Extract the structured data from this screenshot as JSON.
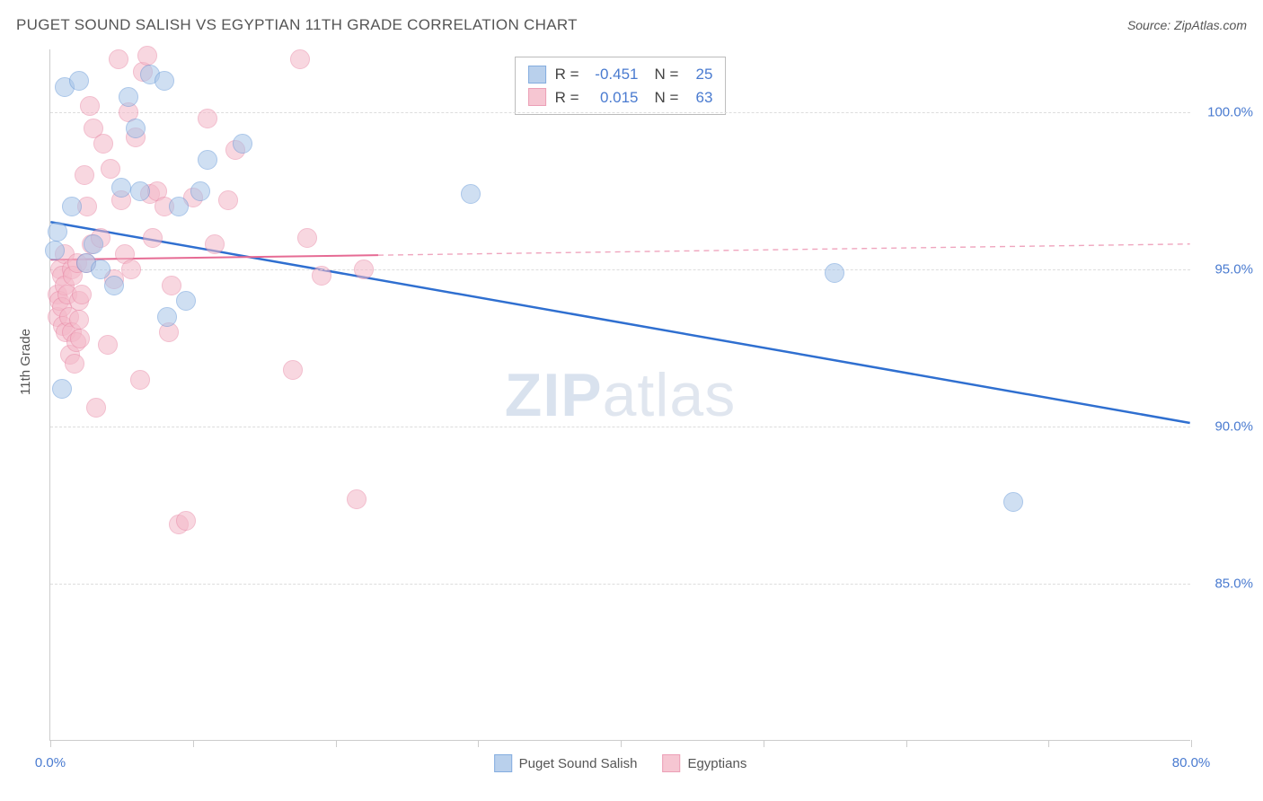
{
  "header": {
    "title": "PUGET SOUND SALISH VS EGYPTIAN 11TH GRADE CORRELATION CHART",
    "source": "Source: ZipAtlas.com"
  },
  "chart": {
    "type": "scatter",
    "watermark_zip": "ZIP",
    "watermark_atlas": "atlas",
    "y_axis_title": "11th Grade",
    "xlim": [
      0,
      80
    ],
    "ylim": [
      80,
      102
    ],
    "x_ticks": [
      0,
      10,
      20,
      30,
      40,
      50,
      60,
      70,
      80
    ],
    "x_tick_labels": {
      "0": "0.0%",
      "80": "80.0%"
    },
    "y_gridlines": [
      85,
      90,
      95,
      100
    ],
    "y_tick_labels": {
      "85": "85.0%",
      "90": "90.0%",
      "95": "95.0%",
      "100": "100.0%"
    },
    "grid_color": "#dddddd",
    "background_color": "#ffffff",
    "axis_color": "#cccccc",
    "tick_label_color": "#4a7bd0",
    "tick_label_fontsize": 15,
    "series": [
      {
        "name": "Puget Sound Salish",
        "fill_color": "#a8c5e8",
        "stroke_color": "#6699d8",
        "fill_opacity": 0.55,
        "marker_radius": 11,
        "R": "-0.451",
        "N": "25",
        "trend": {
          "x1": 0,
          "y1": 96.5,
          "x2": 80,
          "y2": 90.1,
          "solid_until_x": 0,
          "color": "#2f6fd0",
          "width": 2.5,
          "dash": "none"
        },
        "points": [
          [
            0.3,
            95.6
          ],
          [
            0.5,
            96.2
          ],
          [
            0.8,
            91.2
          ],
          [
            1.0,
            100.8
          ],
          [
            1.5,
            97.0
          ],
          [
            2.0,
            101.0
          ],
          [
            2.5,
            95.2
          ],
          [
            3.0,
            95.8
          ],
          [
            3.5,
            95.0
          ],
          [
            4.5,
            94.5
          ],
          [
            5.0,
            97.6
          ],
          [
            5.5,
            100.5
          ],
          [
            6.0,
            99.5
          ],
          [
            6.3,
            97.5
          ],
          [
            7.0,
            101.2
          ],
          [
            8.0,
            101.0
          ],
          [
            8.2,
            93.5
          ],
          [
            9.0,
            97.0
          ],
          [
            9.5,
            94.0
          ],
          [
            10.5,
            97.5
          ],
          [
            11.0,
            98.5
          ],
          [
            13.5,
            99.0
          ],
          [
            29.5,
            97.4
          ],
          [
            55.0,
            94.9
          ],
          [
            67.5,
            87.6
          ]
        ]
      },
      {
        "name": "Egyptians",
        "fill_color": "#f4b8c8",
        "stroke_color": "#e888a5",
        "fill_opacity": 0.55,
        "marker_radius": 11,
        "R": "0.015",
        "N": "63",
        "trend": {
          "x1": 0,
          "y1": 95.3,
          "x2": 80,
          "y2": 95.8,
          "solid_until_x": 23,
          "color": "#e66b94",
          "width": 2,
          "dash": "6 5"
        },
        "points": [
          [
            0.5,
            94.2
          ],
          [
            0.5,
            93.5
          ],
          [
            0.6,
            94.0
          ],
          [
            0.7,
            95.0
          ],
          [
            0.8,
            93.8
          ],
          [
            0.8,
            94.8
          ],
          [
            0.9,
            93.2
          ],
          [
            1.0,
            94.5
          ],
          [
            1.0,
            95.5
          ],
          [
            1.1,
            93.0
          ],
          [
            1.2,
            94.2
          ],
          [
            1.3,
            93.5
          ],
          [
            1.4,
            92.3
          ],
          [
            1.5,
            93.0
          ],
          [
            1.5,
            95.0
          ],
          [
            1.6,
            94.8
          ],
          [
            1.7,
            92.0
          ],
          [
            1.8,
            92.7
          ],
          [
            1.9,
            95.2
          ],
          [
            2.0,
            94.0
          ],
          [
            2.0,
            93.4
          ],
          [
            2.1,
            92.8
          ],
          [
            2.2,
            94.2
          ],
          [
            2.4,
            98.0
          ],
          [
            2.5,
            95.2
          ],
          [
            2.6,
            97.0
          ],
          [
            2.8,
            100.2
          ],
          [
            2.9,
            95.8
          ],
          [
            3.0,
            99.5
          ],
          [
            3.2,
            90.6
          ],
          [
            3.5,
            96.0
          ],
          [
            3.7,
            99.0
          ],
          [
            4.0,
            92.6
          ],
          [
            4.2,
            98.2
          ],
          [
            4.5,
            94.7
          ],
          [
            4.8,
            101.7
          ],
          [
            5.0,
            97.2
          ],
          [
            5.2,
            95.5
          ],
          [
            5.5,
            100.0
          ],
          [
            5.7,
            95.0
          ],
          [
            6.0,
            99.2
          ],
          [
            6.3,
            91.5
          ],
          [
            6.5,
            101.3
          ],
          [
            6.8,
            101.8
          ],
          [
            7.0,
            97.4
          ],
          [
            7.2,
            96.0
          ],
          [
            7.5,
            97.5
          ],
          [
            8.0,
            97.0
          ],
          [
            8.3,
            93.0
          ],
          [
            8.5,
            94.5
          ],
          [
            9.0,
            86.9
          ],
          [
            9.5,
            87.0
          ],
          [
            10.0,
            97.3
          ],
          [
            11.0,
            99.8
          ],
          [
            11.5,
            95.8
          ],
          [
            12.5,
            97.2
          ],
          [
            13.0,
            98.8
          ],
          [
            17.0,
            91.8
          ],
          [
            17.5,
            101.7
          ],
          [
            18.0,
            96.0
          ],
          [
            19.0,
            94.8
          ],
          [
            21.5,
            87.7
          ],
          [
            22.0,
            95.0
          ]
        ]
      }
    ],
    "stats_legend": {
      "R_prefix": "R =",
      "N_prefix": "N ="
    },
    "bottom_legend": {
      "items": [
        "Puget Sound Salish",
        "Egyptians"
      ]
    }
  }
}
